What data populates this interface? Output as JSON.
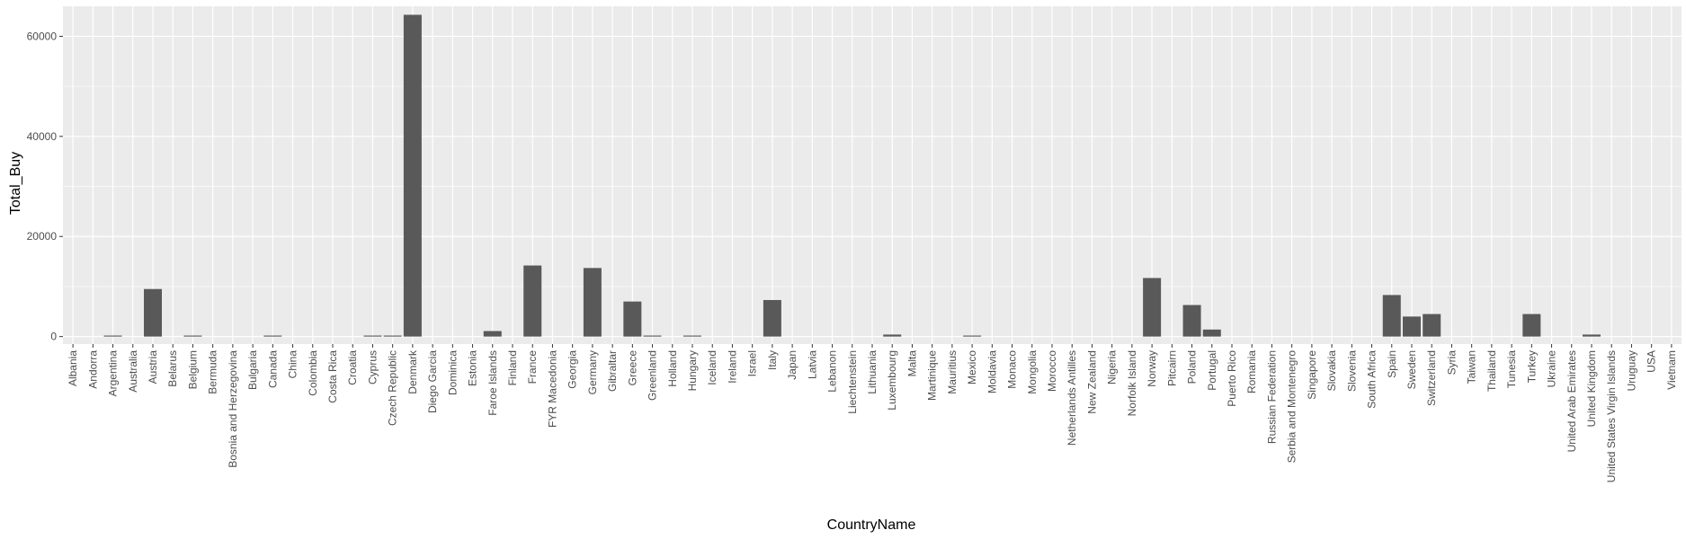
{
  "chart_data": {
    "type": "bar",
    "title": "",
    "xlabel": "CountryName",
    "ylabel": "Total_Buy",
    "ylim": [
      -1500,
      66000
    ],
    "yticks": [
      0,
      20000,
      40000,
      60000
    ],
    "ytick_labels": [
      "0",
      "20000",
      "40000",
      "60000"
    ],
    "grid": true,
    "bar_color": "#595959",
    "panel_color": "#ebebeb",
    "grid_color": "#ffffff",
    "categories": [
      "Albania",
      "Andorra",
      "Argentina",
      "Australia",
      "Austria",
      "Belarus",
      "Belgium",
      "Bermuda",
      "Bosnia and Herzegovina",
      "Bulgaria",
      "Canada",
      "China",
      "Colombia",
      "Costa Rica",
      "Croatia",
      "Cyprus",
      "Czech Republic",
      "Denmark",
      "Diego Garcia",
      "Dominica",
      "Estonia",
      "Faroe Islands",
      "Finland",
      "France",
      "FYR Macedonia",
      "Georgia",
      "Germany",
      "Gibraltar",
      "Greece",
      "Greenland",
      "Holland",
      "Hungary",
      "Iceland",
      "Ireland",
      "Israel",
      "Italy",
      "Japan",
      "Latvia",
      "Lebanon",
      "Liechtenstein",
      "Lithuania",
      "Luxembourg",
      "Malta",
      "Martinique",
      "Mauritius",
      "Mexico",
      "Moldavia",
      "Monaco",
      "Mongolia",
      "Morocco",
      "Netherlands Antilles",
      "New Zealand",
      "Nigeria",
      "Norfolk Island",
      "Norway",
      "Pitcairn",
      "Poland",
      "Portugal",
      "Puerto Rico",
      "Romania",
      "Russian Federation",
      "Serbia and Montenegro",
      "Singapore",
      "Slovakia",
      "Slovenia",
      "South Africa",
      "Spain",
      "Sweden",
      "Switzerland",
      "Syria",
      "Taiwan",
      "Thailand",
      "Tunesia",
      "Turkey",
      "Ukraine",
      "United Arab Emirates",
      "United Kingdom",
      "United States Virgin Islands",
      "Uruguay",
      "USA",
      "Vietnam"
    ],
    "values": [
      0,
      0,
      200,
      0,
      9500,
      0,
      200,
      0,
      0,
      0,
      200,
      0,
      0,
      0,
      0,
      200,
      200,
      64300,
      0,
      0,
      0,
      1100,
      0,
      14200,
      0,
      0,
      13700,
      0,
      7000,
      200,
      0,
      200,
      0,
      0,
      0,
      7300,
      0,
      0,
      0,
      0,
      0,
      400,
      0,
      0,
      0,
      200,
      0,
      0,
      0,
      0,
      0,
      0,
      0,
      0,
      11700,
      0,
      6300,
      1400,
      0,
      0,
      0,
      0,
      0,
      0,
      0,
      0,
      8300,
      4000,
      4500,
      0,
      0,
      0,
      0,
      4500,
      0,
      0,
      400,
      0,
      0,
      0,
      0
    ]
  }
}
